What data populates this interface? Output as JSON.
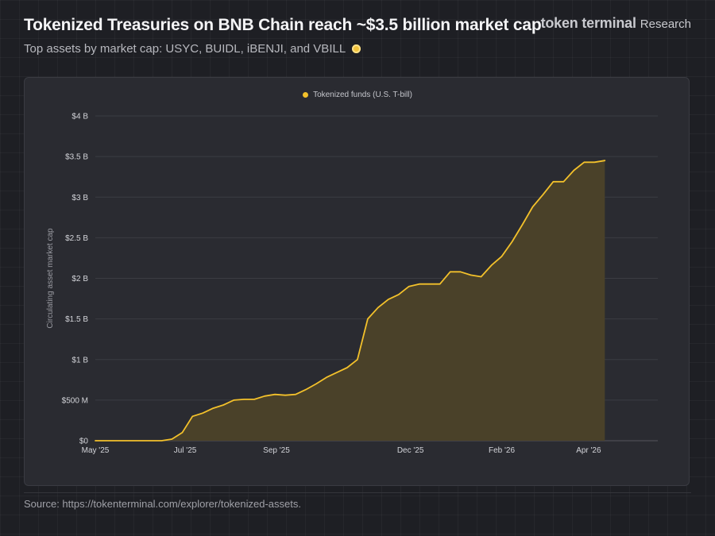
{
  "header": {
    "title": "Tokenized Treasuries on BNB Chain reach ~$3.5 billion market cap",
    "subtitle": "Top assets by market cap: USYC, BUIDL, iBENJI, and VBILL",
    "brand_name": "token terminal",
    "brand_sub": "Research"
  },
  "footer": {
    "source": "Source: https://tokenterminal.com/explorer/tokenized-assets."
  },
  "colors": {
    "series": "#f3c12b",
    "area": "#4a4129"
  },
  "chart_data": {
    "type": "area",
    "ylabel": "Circulating asset market cap",
    "ylim": [
      0,
      4000000000
    ],
    "yticks": [
      {
        "value": 0,
        "label": "$0"
      },
      {
        "value": 500000000,
        "label": "$500 M"
      },
      {
        "value": 1000000000,
        "label": "$1 B"
      },
      {
        "value": 1500000000,
        "label": "$1.5 B"
      },
      {
        "value": 2000000000,
        "label": "$2 B"
      },
      {
        "value": 2500000000,
        "label": "$2.5 B"
      },
      {
        "value": 3000000000,
        "label": "$3 B"
      },
      {
        "value": 3500000000,
        "label": "$3.5 B"
      },
      {
        "value": 4000000000,
        "label": "$4 B"
      }
    ],
    "xlim": [
      "2025-05-01",
      "2026-05-18"
    ],
    "xticks": [
      {
        "date": "2025-05-01",
        "label": "May '25"
      },
      {
        "date": "2025-07-01",
        "label": "Jul '25"
      },
      {
        "date": "2025-09-01",
        "label": "Sep '25"
      },
      {
        "date": "2025-12-01",
        "label": "Dec '25"
      },
      {
        "date": "2026-02-01",
        "label": "Feb '26"
      },
      {
        "date": "2026-04-01",
        "label": "Apr '26"
      }
    ],
    "grid": true,
    "legend": "top-center",
    "series": [
      {
        "name": "Tokenized funds (U.S. T-bill)",
        "points": [
          [
            "2025-05-01",
            0
          ],
          [
            "2025-06-15",
            0
          ],
          [
            "2025-06-22",
            20000000
          ],
          [
            "2025-06-29",
            100000000
          ],
          [
            "2025-07-06",
            300000000
          ],
          [
            "2025-07-13",
            340000000
          ],
          [
            "2025-07-20",
            400000000
          ],
          [
            "2025-07-27",
            440000000
          ],
          [
            "2025-08-03",
            500000000
          ],
          [
            "2025-08-10",
            510000000
          ],
          [
            "2025-08-17",
            510000000
          ],
          [
            "2025-08-24",
            550000000
          ],
          [
            "2025-08-31",
            570000000
          ],
          [
            "2025-09-07",
            560000000
          ],
          [
            "2025-09-14",
            570000000
          ],
          [
            "2025-09-21",
            630000000
          ],
          [
            "2025-09-28",
            700000000
          ],
          [
            "2025-10-05",
            780000000
          ],
          [
            "2025-10-12",
            840000000
          ],
          [
            "2025-10-19",
            900000000
          ],
          [
            "2025-10-26",
            1000000000
          ],
          [
            "2025-11-02",
            1500000000
          ],
          [
            "2025-11-09",
            1640000000
          ],
          [
            "2025-11-16",
            1740000000
          ],
          [
            "2025-11-23",
            1800000000
          ],
          [
            "2025-11-30",
            1900000000
          ],
          [
            "2025-12-07",
            1930000000
          ],
          [
            "2025-12-14",
            1930000000
          ],
          [
            "2025-12-21",
            1930000000
          ],
          [
            "2025-12-28",
            2080000000
          ],
          [
            "2026-01-04",
            2080000000
          ],
          [
            "2026-01-11",
            2040000000
          ],
          [
            "2026-01-18",
            2020000000
          ],
          [
            "2026-01-25",
            2160000000
          ],
          [
            "2026-02-01",
            2270000000
          ],
          [
            "2026-02-08",
            2450000000
          ],
          [
            "2026-02-15",
            2660000000
          ],
          [
            "2026-02-22",
            2880000000
          ],
          [
            "2026-03-01",
            3030000000
          ],
          [
            "2026-03-08",
            3190000000
          ],
          [
            "2026-03-15",
            3190000000
          ],
          [
            "2026-03-22",
            3330000000
          ],
          [
            "2026-03-29",
            3430000000
          ],
          [
            "2026-04-05",
            3430000000
          ],
          [
            "2026-04-12",
            3450000000
          ]
        ]
      }
    ]
  }
}
